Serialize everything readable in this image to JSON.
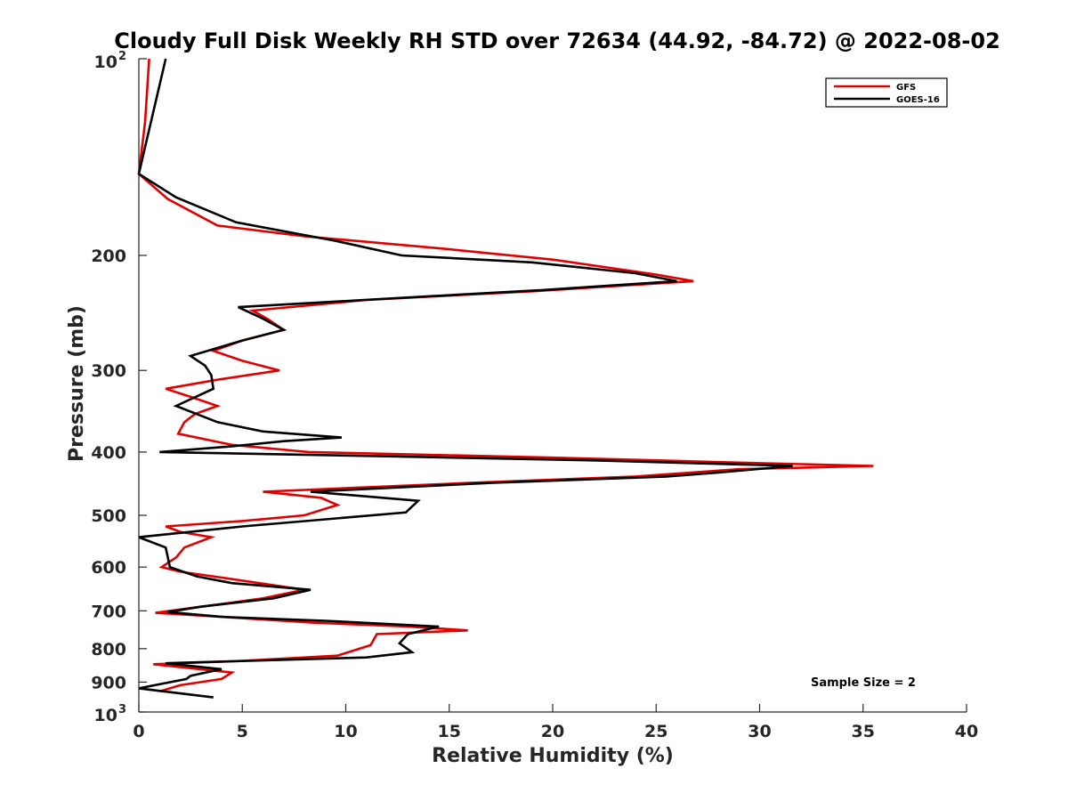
{
  "chart_data": {
    "type": "line",
    "title": "Cloudy Full Disk Weekly RH STD over 72634 (44.92, -84.72) @ 2022-08-02",
    "xlabel": "Relative Humidity (%)",
    "ylabel": "Pressure (mb)",
    "xlim": [
      0,
      40
    ],
    "ylim": [
      100,
      1000
    ],
    "y_scale": "log",
    "y_reversed": true,
    "x_ticks": [
      0,
      5,
      10,
      15,
      20,
      25,
      30,
      35,
      40
    ],
    "x_tick_labels": [
      "0",
      "5",
      "10",
      "15",
      "20",
      "25",
      "30",
      "35",
      "40"
    ],
    "y_ticks": [
      {
        "value": 100,
        "label": "10",
        "sup": "2"
      },
      {
        "value": 200,
        "label": "200",
        "sup": ""
      },
      {
        "value": 300,
        "label": "300",
        "sup": ""
      },
      {
        "value": 400,
        "label": "400",
        "sup": ""
      },
      {
        "value": 500,
        "label": "500",
        "sup": ""
      },
      {
        "value": 600,
        "label": "600",
        "sup": ""
      },
      {
        "value": 700,
        "label": "700",
        "sup": ""
      },
      {
        "value": 800,
        "label": "800",
        "sup": ""
      },
      {
        "value": 900,
        "label": "900",
        "sup": ""
      },
      {
        "value": 1000,
        "label": "10",
        "sup": "3"
      }
    ],
    "grid": false,
    "legend_position": "top-right",
    "annotation": "Sample Size = 2",
    "series": [
      {
        "name": "GFS",
        "color": "#e00000",
        "points": [
          [
            0.5,
            100
          ],
          [
            0.3,
            125
          ],
          [
            0.0,
            150
          ],
          [
            1.4,
            164
          ],
          [
            3.8,
            180
          ],
          [
            8.0,
            187
          ],
          [
            14.5,
            195
          ],
          [
            20.0,
            203
          ],
          [
            25.0,
            214
          ],
          [
            26.8,
            219
          ],
          [
            19.0,
            227
          ],
          [
            11.0,
            234
          ],
          [
            5.5,
            243
          ],
          [
            6.2,
            250
          ],
          [
            7.0,
            260
          ],
          [
            5.0,
            270
          ],
          [
            3.6,
            280
          ],
          [
            5.0,
            290
          ],
          [
            6.8,
            300
          ],
          [
            3.8,
            310
          ],
          [
            1.3,
            320
          ],
          [
            2.6,
            330
          ],
          [
            3.8,
            340
          ],
          [
            2.7,
            350
          ],
          [
            2.2,
            360
          ],
          [
            1.9,
            375
          ],
          [
            4.5,
            390
          ],
          [
            8.2,
            400
          ],
          [
            20.0,
            408
          ],
          [
            30.0,
            416
          ],
          [
            35.5,
            420
          ],
          [
            29.0,
            425
          ],
          [
            24.0,
            436
          ],
          [
            16.0,
            446
          ],
          [
            6.0,
            460
          ],
          [
            8.8,
            470
          ],
          [
            9.6,
            482
          ],
          [
            8.0,
            500
          ],
          [
            5.0,
            510
          ],
          [
            1.3,
            520
          ],
          [
            2.0,
            530
          ],
          [
            3.5,
            540
          ],
          [
            2.2,
            560
          ],
          [
            1.8,
            580
          ],
          [
            1.1,
            600
          ],
          [
            2.0,
            610
          ],
          [
            3.6,
            620
          ],
          [
            8.0,
            650
          ],
          [
            6.0,
            670
          ],
          [
            3.0,
            690
          ],
          [
            0.8,
            705
          ],
          [
            4.0,
            715
          ],
          [
            8.5,
            730
          ],
          [
            13.0,
            740
          ],
          [
            15.9,
            750
          ],
          [
            11.5,
            760
          ],
          [
            11.2,
            790
          ],
          [
            9.6,
            820
          ],
          [
            5.0,
            835
          ],
          [
            0.7,
            845
          ],
          [
            4.5,
            870
          ],
          [
            4.0,
            890
          ],
          [
            3.0,
            900
          ],
          [
            2.0,
            910
          ],
          [
            1.0,
            930
          ]
        ]
      },
      {
        "name": "GOES-16",
        "color": "#000000",
        "points": [
          [
            1.3,
            100
          ],
          [
            0.0,
            150
          ],
          [
            1.8,
            163
          ],
          [
            4.7,
            178
          ],
          [
            9.5,
            190
          ],
          [
            12.7,
            200
          ],
          [
            19.0,
            205
          ],
          [
            24.0,
            213
          ],
          [
            26.0,
            219
          ],
          [
            19.5,
            226
          ],
          [
            14.0,
            231
          ],
          [
            4.8,
            240
          ],
          [
            6.0,
            250
          ],
          [
            7.0,
            260
          ],
          [
            5.0,
            270
          ],
          [
            2.5,
            285
          ],
          [
            3.2,
            295
          ],
          [
            3.5,
            305
          ],
          [
            3.6,
            320
          ],
          [
            1.8,
            340
          ],
          [
            3.8,
            360
          ],
          [
            6.0,
            372
          ],
          [
            9.8,
            380
          ],
          [
            7.0,
            385
          ],
          [
            4.5,
            392
          ],
          [
            1.0,
            400
          ],
          [
            12.0,
            406
          ],
          [
            22.0,
            412
          ],
          [
            31.6,
            420
          ],
          [
            28.0,
            430
          ],
          [
            25.5,
            436
          ],
          [
            17.0,
            446
          ],
          [
            8.3,
            460
          ],
          [
            13.5,
            475
          ],
          [
            12.9,
            495
          ],
          [
            5.0,
            520
          ],
          [
            0.0,
            540
          ],
          [
            1.3,
            560
          ],
          [
            1.4,
            580
          ],
          [
            1.5,
            600
          ],
          [
            2.8,
            620
          ],
          [
            4.5,
            635
          ],
          [
            8.3,
            650
          ],
          [
            6.5,
            670
          ],
          [
            3.0,
            690
          ],
          [
            1.4,
            703
          ],
          [
            4.0,
            715
          ],
          [
            9.0,
            725
          ],
          [
            14.5,
            740
          ],
          [
            13.0,
            760
          ],
          [
            12.6,
            785
          ],
          [
            13.2,
            810
          ],
          [
            11.0,
            825
          ],
          [
            1.3,
            842
          ],
          [
            4.0,
            860
          ],
          [
            2.5,
            880
          ],
          [
            2.3,
            890
          ],
          [
            0.0,
            920
          ],
          [
            3.6,
            950
          ]
        ]
      }
    ]
  }
}
